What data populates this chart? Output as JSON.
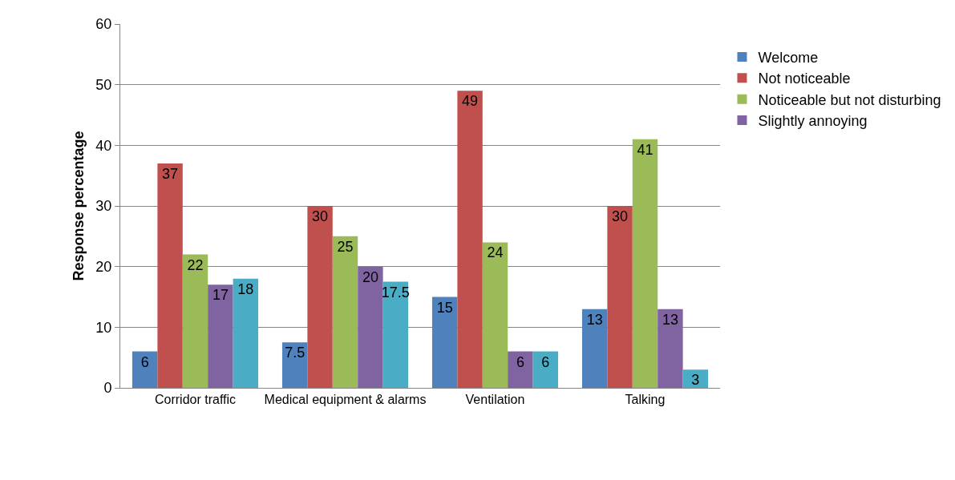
{
  "chart_data": {
    "type": "bar",
    "ylabel": "Response percentage",
    "categories": [
      "Corridor traffic",
      "Medical equipment & alarms",
      "Ventilation",
      "Talking"
    ],
    "series": [
      {
        "name": "Welcome",
        "color": "#4f81bd",
        "values": [
          6,
          7.5,
          15,
          13
        ]
      },
      {
        "name": "Not noticeable",
        "color": "#c0504d",
        "values": [
          37,
          30,
          49,
          30
        ]
      },
      {
        "name": "Noticeable but not disturbing",
        "color": "#9bbb59",
        "values": [
          22,
          25,
          24,
          41
        ]
      },
      {
        "name": "Slightly annoying",
        "color": "#8064a2",
        "values": [
          17,
          20,
          6,
          13
        ]
      },
      {
        "color": "#4bacc6",
        "values": [
          18,
          17.5,
          6,
          3
        ]
      }
    ],
    "ylim": [
      0,
      60
    ],
    "yticks": [
      0,
      10,
      20,
      30,
      40,
      50,
      60
    ],
    "grid": "y",
    "legend": "right",
    "data_labels": true
  }
}
